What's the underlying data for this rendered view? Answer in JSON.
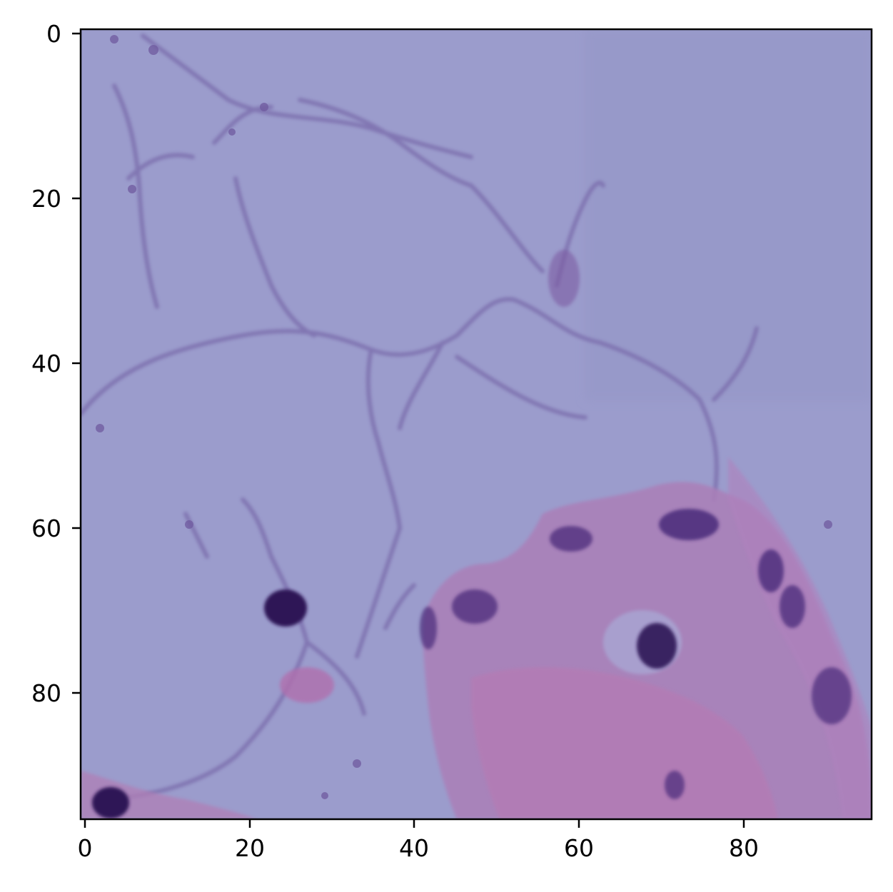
{
  "image": {
    "description_icon": "histology-tissue-patch",
    "colors": {
      "background": "#9b9ccc",
      "membrane": "#7f6fae",
      "tissue_pink": "#b27db8",
      "nucleus_dark": "#2e1457"
    }
  },
  "axes": {
    "x_ticks": [
      "0",
      "20",
      "40",
      "60",
      "80"
    ],
    "y_ticks": [
      "0",
      "20",
      "40",
      "60",
      "80"
    ],
    "x_range": [
      -0.5,
      95.5
    ],
    "y_range": [
      -0.5,
      95.5
    ]
  }
}
